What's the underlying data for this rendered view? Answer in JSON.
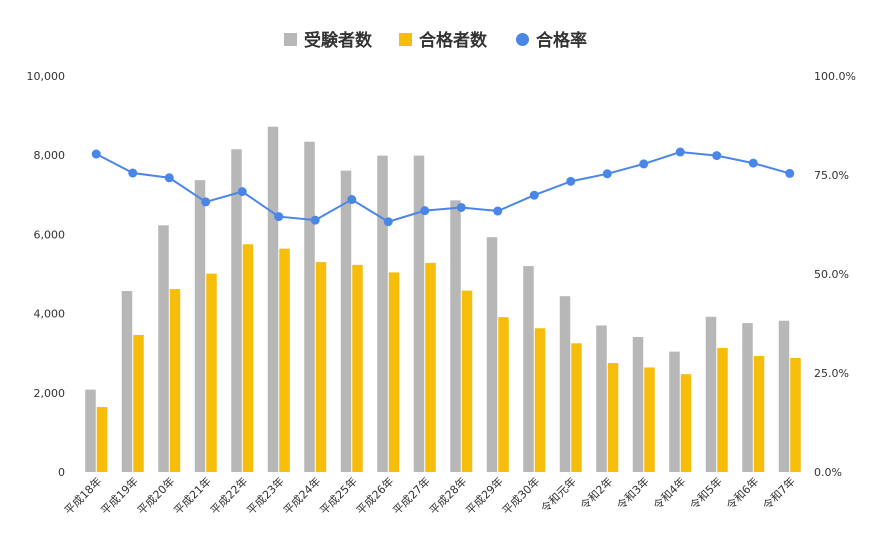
{
  "chart_data": {
    "type": "bar",
    "categories": [
      "平成18年",
      "平成19年",
      "平成20年",
      "平成21年",
      "平成22年",
      "平成23年",
      "平成24年",
      "平成25年",
      "平成26年",
      "平成27年",
      "平成28年",
      "平成29年",
      "平成30年",
      "令和元年",
      "令和2年",
      "令和3年",
      "令和4年",
      "令和5年",
      "令和6年",
      "令和7年"
    ],
    "series": [
      {
        "name": "受験者数",
        "kind": "bar",
        "axis": "left",
        "color": "#b7b7b7",
        "values": [
          2080,
          4570,
          6230,
          7370,
          8150,
          8720,
          8340,
          7610,
          7990,
          7990,
          6860,
          5930,
          5200,
          4440,
          3700,
          3410,
          3040,
          3920,
          3760,
          3820
        ]
      },
      {
        "name": "合格者数",
        "kind": "bar",
        "axis": "left",
        "color": "#f6bd0b",
        "values": [
          1640,
          3460,
          4620,
          5010,
          5750,
          5640,
          5300,
          5230,
          5040,
          5280,
          4580,
          3910,
          3630,
          3250,
          2750,
          2640,
          2470,
          3130,
          2930,
          2880
        ]
      },
      {
        "name": "合格率",
        "kind": "line",
        "axis": "right",
        "color": "#4a86e8",
        "values": [
          80.3,
          75.5,
          74.3,
          68.2,
          70.8,
          64.5,
          63.6,
          68.8,
          63.2,
          66.0,
          66.8,
          65.9,
          69.9,
          73.4,
          75.3,
          77.8,
          80.8,
          79.9,
          78.0,
          75.4
        ]
      }
    ],
    "y_left": {
      "min": 0,
      "max": 10000,
      "ticks": [
        "0",
        "2,000",
        "4,000",
        "6,000",
        "8,000",
        "10,000"
      ]
    },
    "y_right": {
      "min": 0,
      "max": 100,
      "ticks": [
        "0.0%",
        "25.0%",
        "50.0%",
        "75.0%",
        "100.0%"
      ]
    },
    "grid": false,
    "legend_position": "top-center"
  }
}
